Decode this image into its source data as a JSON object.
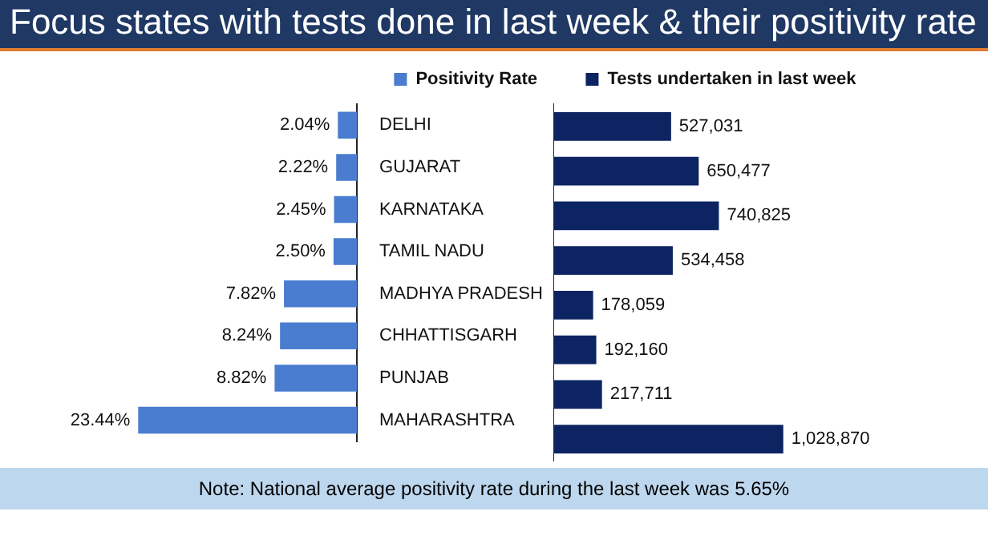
{
  "chart_data": [
    {
      "type": "bar",
      "title": "Focus states with tests done in last week & their positivity rate",
      "orientation": "horizontal",
      "categories": [
        "DELHI",
        "GUJARAT",
        "KARNATAKA",
        "TAMIL NADU",
        "MADHYA PRADESH",
        "CHHATTISGARH",
        "PUNJAB",
        "MAHARASHTRA"
      ],
      "tick_labels": "y",
      "legend": "top",
      "series": [
        {
          "name": "Positivity Rate",
          "color": "#4a7cd0",
          "values": [
            2.04,
            2.22,
            2.45,
            2.5,
            7.82,
            8.24,
            8.82,
            23.44
          ],
          "value_labels": [
            "2.04%",
            "2.22%",
            "2.45%",
            "2.50%",
            "7.82%",
            "8.24%",
            "8.82%",
            "23.44%"
          ]
        }
      ]
    },
    {
      "type": "bar",
      "orientation": "horizontal",
      "categories": [
        null,
        null,
        null,
        null,
        null,
        null,
        null,
        null
      ],
      "tick_labels": false,
      "legend": "top",
      "annotations": [
        "Note: National average positivity rate during the last week was 5.65%"
      ],
      "series": [
        {
          "name": "Tests undertaken in last week",
          "color": "#0d2463",
          "values": [
            527031,
            650477,
            740825,
            534458,
            178059,
            192160,
            217711,
            1028870
          ],
          "value_labels": [
            "527,031",
            "650,477",
            "740,825",
            "534,458",
            "178,059",
            "192,160",
            "217,711",
            "1,028,870"
          ]
        }
      ]
    }
  ]
}
